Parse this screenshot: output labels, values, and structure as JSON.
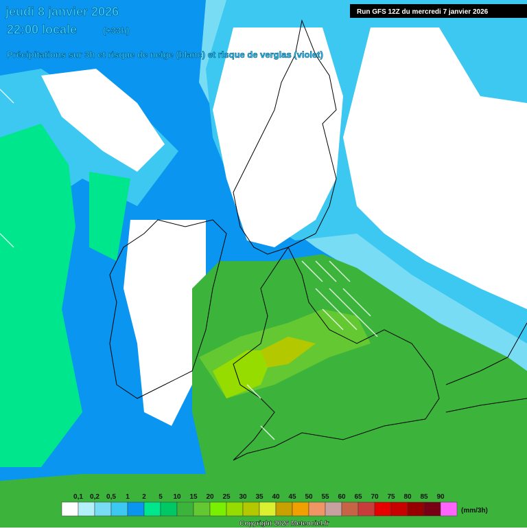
{
  "header": {
    "date": "jeudi 8 janvier 2026",
    "time": "22:00 locale",
    "lead": "(+33h)",
    "subtitle": "Précipitations sur 3h et risque de neige (blanc) et risque de verglas (violet)",
    "run": "Run GFS 12Z du mercredi 7 janvier 2026"
  },
  "legend": {
    "labels": [
      "0,1",
      "0,2",
      "0,5",
      "1",
      "2",
      "5",
      "10",
      "15",
      "20",
      "25",
      "30",
      "35",
      "40",
      "45",
      "50",
      "55",
      "60",
      "65",
      "70",
      "75",
      "80",
      "85",
      "90"
    ],
    "colors": [
      "#ffffff",
      "#b4f0fa",
      "#78dcf5",
      "#3cc8f0",
      "#0a96f0",
      "#00e68c",
      "#00c864",
      "#3cb43c",
      "#64c832",
      "#78f000",
      "#96dc00",
      "#b4c800",
      "#dcf032",
      "#c8a000",
      "#f0a000",
      "#f09664",
      "#c8a0a0",
      "#c86446",
      "#c83c3c",
      "#e60000",
      "#c80000",
      "#960000",
      "#780014",
      "#ff64ff"
    ],
    "unit": "(mm/3h)"
  },
  "footer": {
    "copyright": "Copyright 2026 Meteociel.fr"
  }
}
